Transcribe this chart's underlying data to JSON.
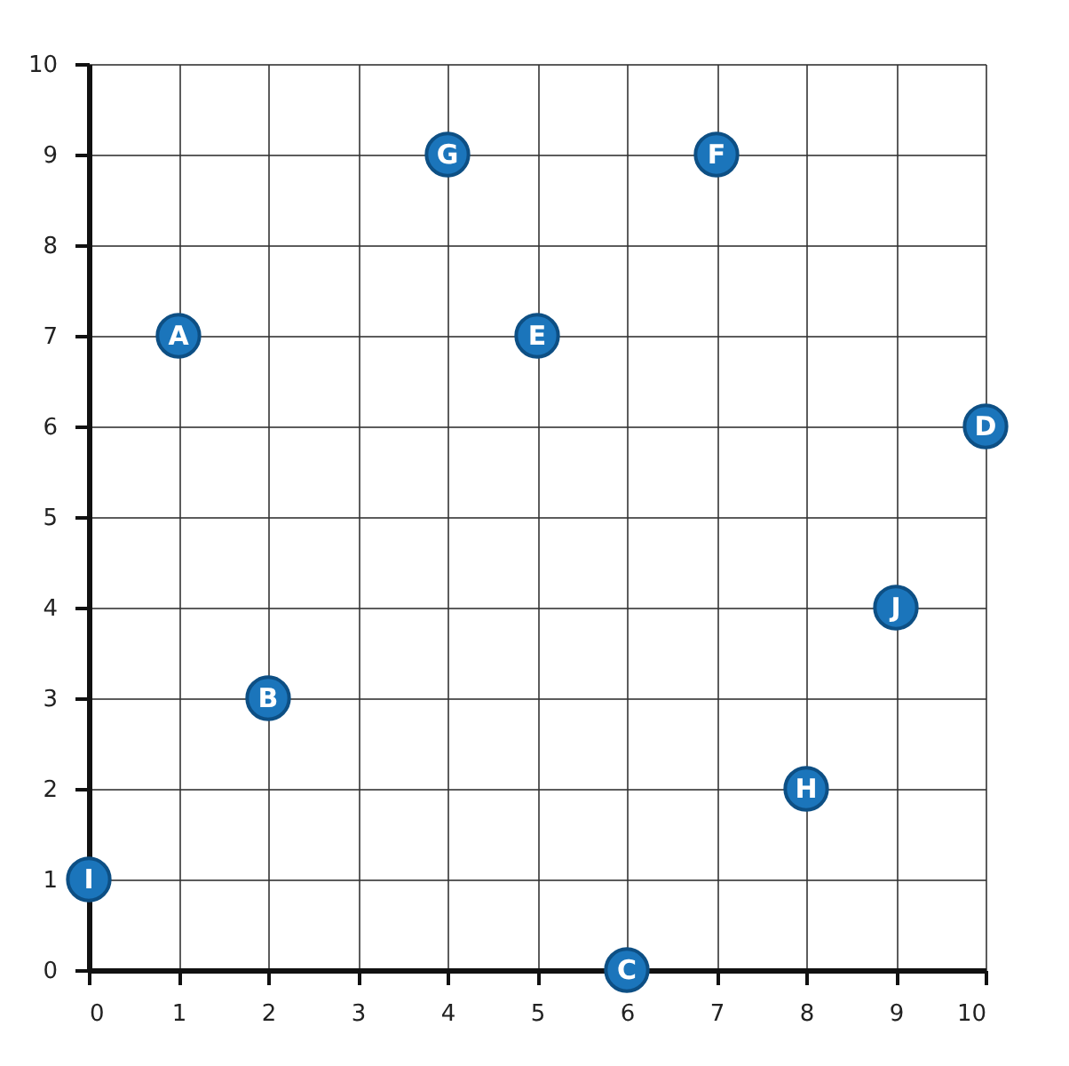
{
  "chart_data": {
    "type": "scatter",
    "x": [
      1,
      2,
      6,
      10,
      5,
      7,
      4,
      8,
      0,
      9
    ],
    "values": [
      7,
      3,
      0,
      6,
      7,
      9,
      9,
      2,
      1,
      4
    ],
    "color": "#1b75bb",
    "marker": "circle",
    "xlim": [
      0,
      10
    ],
    "ylim": [
      0,
      10
    ],
    "xticks": [
      0,
      1,
      2,
      3,
      4,
      5,
      6,
      7,
      8,
      9,
      10
    ],
    "yticks": [
      0,
      1,
      2,
      3,
      4,
      5,
      6,
      7,
      8,
      9,
      10
    ],
    "grid": true,
    "annotations": [
      {
        "text": "A",
        "x": 1,
        "y": 7
      },
      {
        "text": "B",
        "x": 2,
        "y": 3
      },
      {
        "text": "C",
        "x": 6,
        "y": 0
      },
      {
        "text": "D",
        "x": 10,
        "y": 6
      },
      {
        "text": "E",
        "x": 5,
        "y": 7
      },
      {
        "text": "F",
        "x": 7,
        "y": 9
      },
      {
        "text": "G",
        "x": 4,
        "y": 9
      },
      {
        "text": "H",
        "x": 8,
        "y": 2
      },
      {
        "text": "I",
        "x": 0,
        "y": 1
      },
      {
        "text": "J",
        "x": 9,
        "y": 4
      }
    ]
  }
}
